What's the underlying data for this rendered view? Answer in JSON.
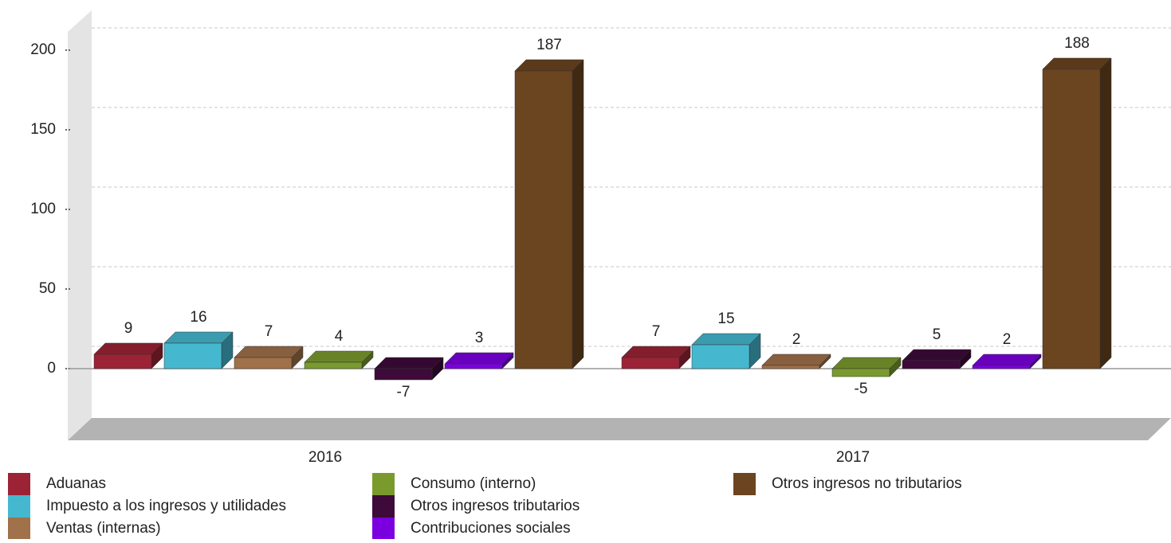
{
  "chart_data": {
    "type": "bar3d",
    "categories": [
      "2016",
      "2017"
    ],
    "series": [
      {
        "name": "Aduanas",
        "color": "#9b2335",
        "values": [
          9,
          7
        ]
      },
      {
        "name": "Impuesto a los ingresos y utilidades",
        "color": "#45b8cf",
        "values": [
          16,
          15
        ]
      },
      {
        "name": "Ventas (internas)",
        "color": "#a0714a",
        "values": [
          7,
          2
        ]
      },
      {
        "name": "Consumo (interno)",
        "color": "#7a9a2e",
        "values": [
          4,
          -5
        ]
      },
      {
        "name": "Otros ingresos tributarios",
        "color": "#3d0a3a",
        "values": [
          -7,
          5
        ]
      },
      {
        "name": "Contribuciones sociales",
        "color": "#7a00e0",
        "values": [
          3,
          2
        ]
      },
      {
        "name": "Otros ingresos no tributarios",
        "color": "#6b4420",
        "values": [
          187,
          188
        ]
      }
    ],
    "ylim": [
      -30,
      210
    ],
    "yticks": [
      0,
      50,
      100,
      150,
      200
    ],
    "grid": true
  }
}
